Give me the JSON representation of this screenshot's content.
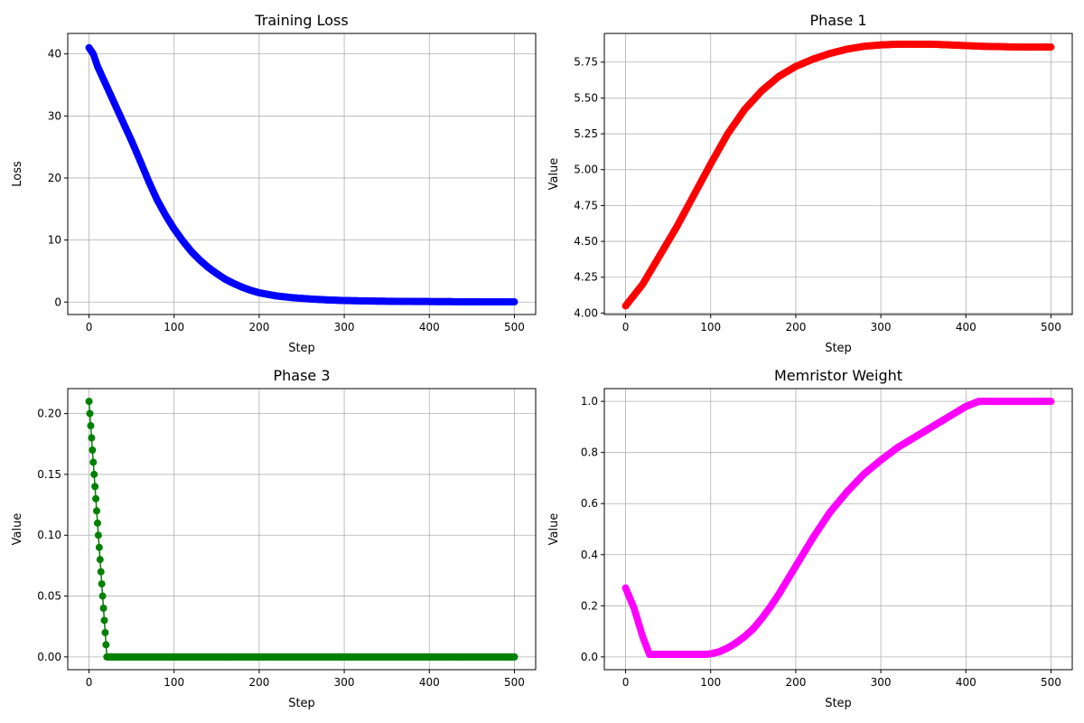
{
  "figure": {
    "background": "#ffffff"
  },
  "chart_data": [
    {
      "type": "line",
      "title": "Training Loss",
      "xlabel": "Step",
      "ylabel": "Loss",
      "color": "#0000ff",
      "marker": "circle",
      "xlim": [
        -25,
        525
      ],
      "ylim": [
        -2,
        43.3
      ],
      "xticks": [
        0,
        100,
        200,
        300,
        400,
        500
      ],
      "xtick_labels": [
        "0",
        "100",
        "200",
        "300",
        "400",
        "500"
      ],
      "yticks": [
        0,
        10,
        20,
        30,
        40
      ],
      "ytick_labels": [
        "0",
        "10",
        "20",
        "30",
        "40"
      ],
      "grid": true,
      "x_range": [
        0,
        500
      ],
      "points_x": [
        0,
        5,
        10,
        20,
        30,
        40,
        50,
        60,
        70,
        80,
        90,
        100,
        110,
        120,
        130,
        140,
        150,
        160,
        170,
        180,
        190,
        200,
        220,
        240,
        260,
        280,
        300,
        340,
        380,
        420,
        460,
        500
      ],
      "points_y": [
        41.0,
        40.0,
        38.0,
        35.0,
        32.0,
        29.0,
        26.0,
        22.8,
        19.5,
        16.5,
        14.0,
        11.8,
        9.9,
        8.2,
        6.8,
        5.6,
        4.6,
        3.7,
        3.0,
        2.4,
        1.9,
        1.5,
        1.0,
        0.7,
        0.5,
        0.35,
        0.25,
        0.15,
        0.1,
        0.07,
        0.05,
        0.03
      ]
    },
    {
      "type": "line",
      "title": "Phase 1",
      "xlabel": "Step",
      "ylabel": "Value",
      "color": "#ff0000",
      "marker": "circle",
      "xlim": [
        -25,
        525
      ],
      "ylim": [
        3.99,
        5.95
      ],
      "xticks": [
        0,
        100,
        200,
        300,
        400,
        500
      ],
      "xtick_labels": [
        "0",
        "100",
        "200",
        "300",
        "400",
        "500"
      ],
      "yticks": [
        4.0,
        4.25,
        4.5,
        4.75,
        5.0,
        5.25,
        5.5,
        5.75
      ],
      "ytick_labels": [
        "4.00",
        "4.25",
        "4.50",
        "4.75",
        "5.00",
        "5.25",
        "5.50",
        "5.75"
      ],
      "grid": true,
      "x_range": [
        0,
        500
      ],
      "points_x": [
        0,
        20,
        40,
        60,
        80,
        100,
        120,
        140,
        160,
        180,
        200,
        220,
        240,
        260,
        280,
        300,
        320,
        340,
        360,
        380,
        400,
        420,
        440,
        460,
        480,
        500
      ],
      "points_y": [
        4.05,
        4.2,
        4.4,
        4.6,
        4.82,
        5.04,
        5.25,
        5.42,
        5.55,
        5.65,
        5.72,
        5.77,
        5.81,
        5.84,
        5.86,
        5.87,
        5.875,
        5.875,
        5.875,
        5.87,
        5.865,
        5.86,
        5.858,
        5.855,
        5.855,
        5.855
      ]
    },
    {
      "type": "line",
      "title": "Phase 3",
      "xlabel": "Step",
      "ylabel": "Value",
      "color": "#008000",
      "marker": "circle",
      "xlim": [
        -25,
        525
      ],
      "ylim": [
        -0.0105,
        0.2205
      ],
      "xticks": [
        0,
        100,
        200,
        300,
        400,
        500
      ],
      "xtick_labels": [
        "0",
        "100",
        "200",
        "300",
        "400",
        "500"
      ],
      "yticks": [
        0.0,
        0.05,
        0.1,
        0.15,
        0.2
      ],
      "ytick_labels": [
        "0.00",
        "0.05",
        "0.10",
        "0.15",
        "0.20"
      ],
      "grid": true,
      "x_range": [
        0,
        500
      ],
      "points_x": [
        0,
        21,
        500
      ],
      "points_y": [
        0.21,
        0.0,
        0.0
      ]
    },
    {
      "type": "line",
      "title": "Memristor Weight",
      "xlabel": "Step",
      "ylabel": "Value",
      "color": "#ff00ff",
      "marker": "circle",
      "xlim": [
        -25,
        525
      ],
      "ylim": [
        -0.05,
        1.05
      ],
      "xticks": [
        0,
        100,
        200,
        300,
        400,
        500
      ],
      "xtick_labels": [
        "0",
        "100",
        "200",
        "300",
        "400",
        "500"
      ],
      "yticks": [
        0.0,
        0.2,
        0.4,
        0.6,
        0.8,
        1.0
      ],
      "ytick_labels": [
        "0.0",
        "0.2",
        "0.4",
        "0.6",
        "0.8",
        "1.0"
      ],
      "grid": true,
      "x_range": [
        0,
        500
      ],
      "points_x": [
        0,
        10,
        20,
        28,
        40,
        60,
        80,
        95,
        100,
        110,
        120,
        130,
        140,
        150,
        160,
        170,
        180,
        190,
        200,
        210,
        220,
        240,
        260,
        280,
        300,
        320,
        340,
        360,
        380,
        400,
        415,
        450,
        500
      ],
      "points_y": [
        0.27,
        0.19,
        0.08,
        0.01,
        0.01,
        0.01,
        0.01,
        0.01,
        0.012,
        0.02,
        0.035,
        0.055,
        0.08,
        0.11,
        0.15,
        0.195,
        0.245,
        0.3,
        0.355,
        0.41,
        0.465,
        0.565,
        0.645,
        0.715,
        0.77,
        0.82,
        0.86,
        0.9,
        0.94,
        0.98,
        1.0,
        1.0,
        1.0
      ]
    }
  ]
}
